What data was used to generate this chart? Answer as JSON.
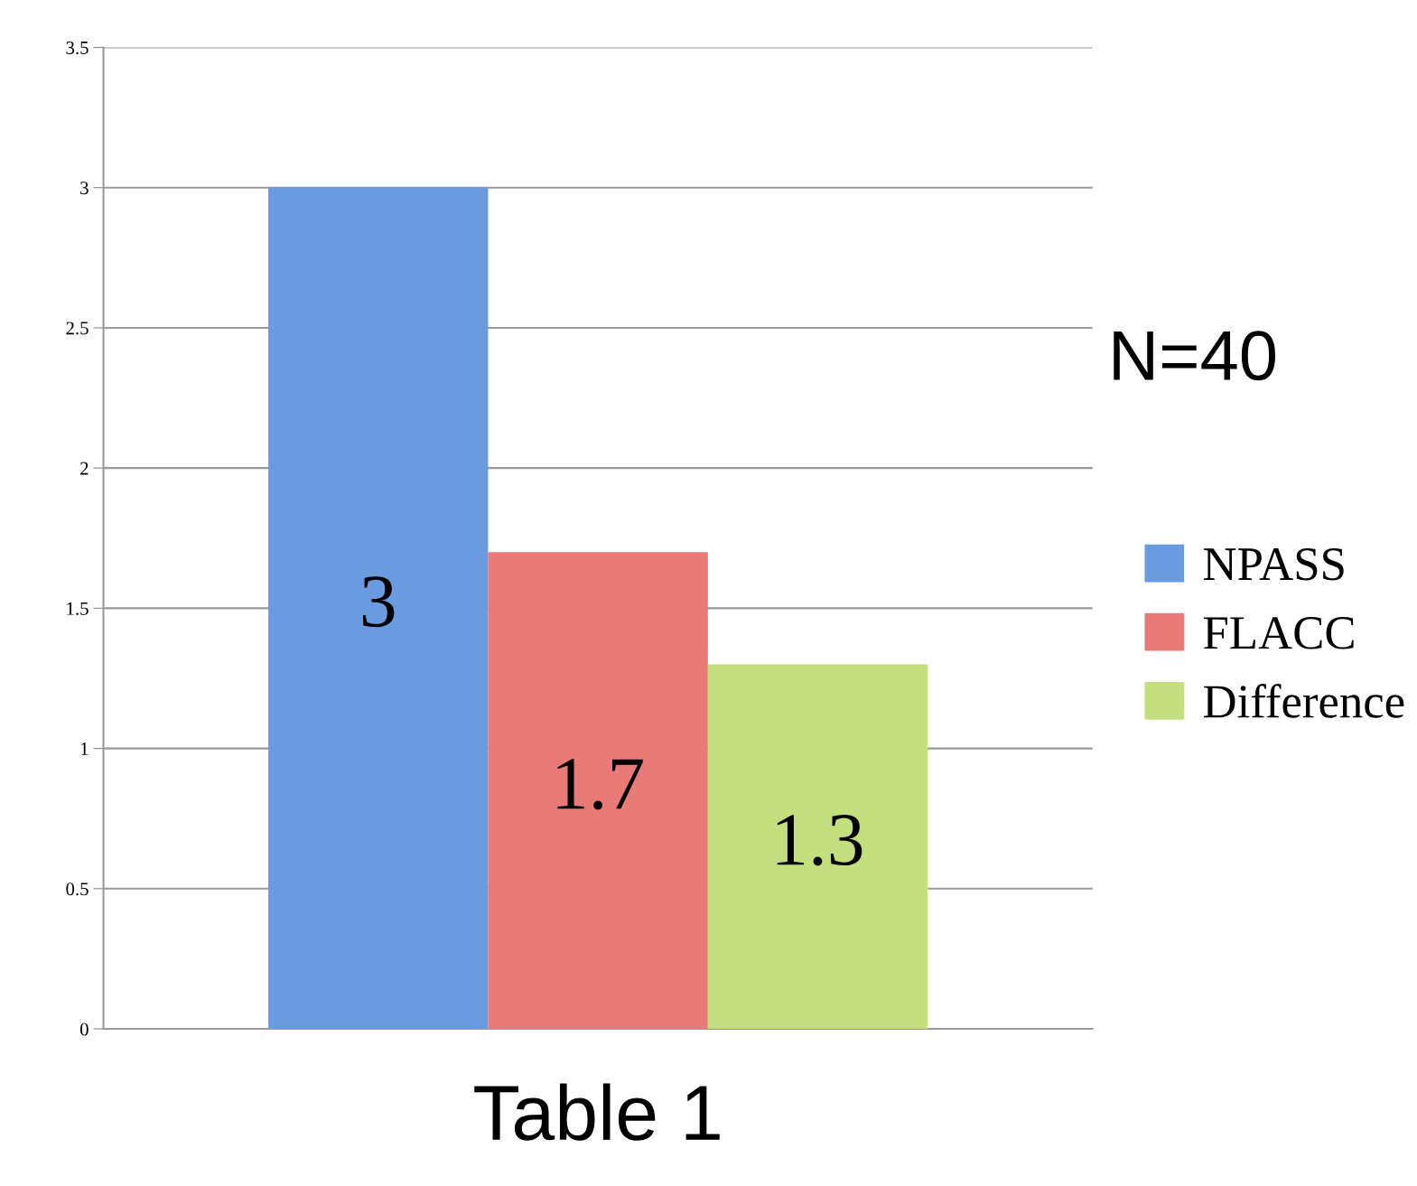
{
  "chart_data": {
    "type": "bar",
    "xlabel": "Table 1",
    "categories": [
      null
    ],
    "series": [
      {
        "name": "NPASS",
        "color": "#6a9be0",
        "values": [
          3
        ]
      },
      {
        "name": "FLACC",
        "color": "#ea7a78",
        "values": [
          1.7
        ]
      },
      {
        "name": "Difference",
        "color": "#c4e07e",
        "values": [
          1.3
        ]
      }
    ],
    "ylim": [
      0,
      3.5
    ],
    "yticks": [
      0,
      0.5,
      1,
      1.5,
      2,
      2.5,
      3,
      3.5
    ],
    "grid": "y",
    "legend": "right",
    "data_labels": true,
    "annotations": [
      "N=40"
    ]
  }
}
